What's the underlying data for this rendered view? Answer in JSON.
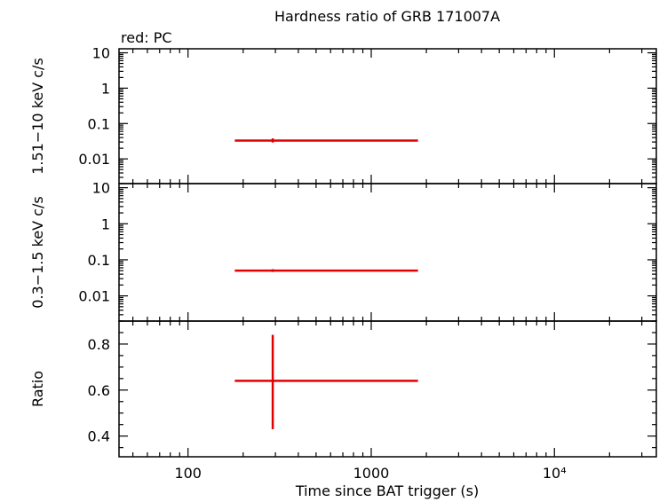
{
  "title": "Hardness ratio of GRB 171007A",
  "subtitle": "red: PC",
  "colors": {
    "series": "#e00000",
    "axis": "#000000",
    "background": "#ffffff"
  },
  "chart_data": [
    {
      "type": "scatter",
      "panel": "hard",
      "ylabel": "1.51−10 keV c/s",
      "xscale": "log",
      "yscale": "log",
      "xlim": [
        42,
        36000
      ],
      "ylim": [
        0.002,
        13
      ],
      "yticks": [
        0.01,
        0.1,
        1,
        10
      ],
      "yticklabels": [
        "0.01",
        "0.1",
        "1",
        "10"
      ],
      "series": [
        {
          "x": 290,
          "xerr": [
            180,
            1800
          ],
          "y": 0.033,
          "yerr": [
            0.029,
            0.038
          ]
        }
      ]
    },
    {
      "type": "scatter",
      "panel": "soft",
      "ylabel": "0.3−1.5 keV c/s",
      "xscale": "log",
      "yscale": "log",
      "xlim": [
        42,
        36000
      ],
      "ylim": [
        0.002,
        13
      ],
      "yticks": [
        0.01,
        0.1,
        1,
        10
      ],
      "yticklabels": [
        "0.01",
        "0.1",
        "1",
        "10"
      ],
      "series": [
        {
          "x": 290,
          "xerr": [
            180,
            1800
          ],
          "y": 0.05,
          "yerr": [
            0.046,
            0.055
          ]
        }
      ]
    },
    {
      "type": "scatter",
      "panel": "ratio",
      "ylabel": "Ratio",
      "xlabel": "Time since BAT trigger (s)",
      "xscale": "log",
      "yscale": "linear",
      "xlim": [
        42,
        36000
      ],
      "ylim": [
        0.31,
        0.9
      ],
      "yticks": [
        0.4,
        0.6,
        0.8
      ],
      "yticklabels": [
        "0.4",
        "0.6",
        "0.8"
      ],
      "xticks": [
        100,
        1000,
        10000
      ],
      "xticklabels": [
        "100",
        "1000",
        "10⁴"
      ],
      "series": [
        {
          "x": 290,
          "xerr": [
            180,
            1800
          ],
          "y": 0.64,
          "yerr": [
            0.43,
            0.84
          ]
        }
      ]
    }
  ]
}
